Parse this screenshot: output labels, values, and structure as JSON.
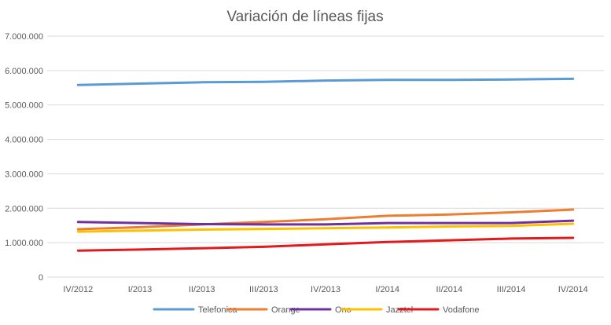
{
  "chart_data": {
    "type": "line",
    "title": "Variación de líneas fijas",
    "xlabel": "",
    "ylabel": "",
    "categories": [
      "IV/2012",
      "I/2013",
      "II/2013",
      "III/2013",
      "IV/2013",
      "I/2014",
      "II/2014",
      "III/2014",
      "IV/2014"
    ],
    "ylim": [
      0,
      7000000
    ],
    "yticks": [
      0,
      1000000,
      2000000,
      3000000,
      4000000,
      5000000,
      6000000,
      7000000
    ],
    "ytick_labels": [
      "0",
      "1.000.000",
      "2.000.000",
      "3.000.000",
      "4.000.000",
      "5.000.000",
      "6.000.000",
      "7.000.000"
    ],
    "grid": true,
    "legend_position": "bottom",
    "series": [
      {
        "name": "Telefonica",
        "color": "#5b9bd5",
        "values": [
          5580000,
          5620000,
          5660000,
          5670000,
          5710000,
          5730000,
          5730000,
          5740000,
          5760000
        ]
      },
      {
        "name": "Orange",
        "color": "#ed7d31",
        "values": [
          1390000,
          1450000,
          1530000,
          1600000,
          1680000,
          1780000,
          1820000,
          1880000,
          1960000
        ]
      },
      {
        "name": "Ono",
        "color": "#7030a0",
        "values": [
          1600000,
          1570000,
          1540000,
          1530000,
          1530000,
          1570000,
          1570000,
          1570000,
          1640000
        ]
      },
      {
        "name": "Jazztel",
        "color": "#ffc000",
        "values": [
          1320000,
          1350000,
          1380000,
          1400000,
          1420000,
          1440000,
          1470000,
          1490000,
          1550000
        ]
      },
      {
        "name": "Vodafone",
        "color": "#e31a1c",
        "values": [
          770000,
          800000,
          840000,
          880000,
          950000,
          1020000,
          1070000,
          1120000,
          1140000
        ]
      }
    ]
  }
}
